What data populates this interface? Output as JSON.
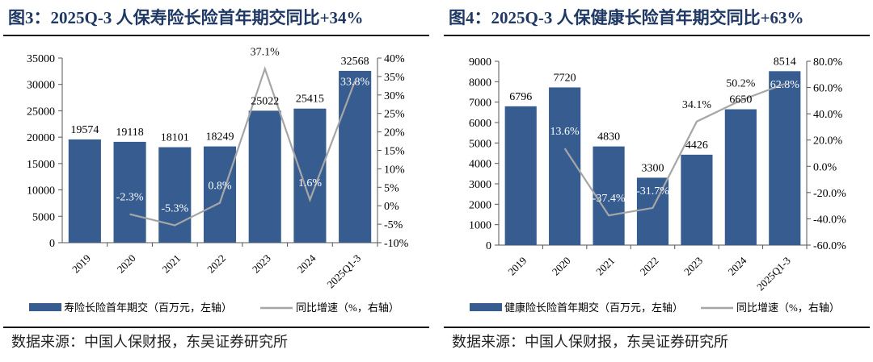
{
  "colors": {
    "bar": "#375d90",
    "line": "#a6a6a6",
    "title": "#1f3864"
  },
  "chart_data": [
    {
      "type": "bar+line",
      "title": "图3：2025Q-3 人保寿险长险首年期交同比+34%",
      "categories": [
        "2019",
        "2020",
        "2021",
        "2022",
        "2023",
        "2024",
        "2025Q1-3"
      ],
      "series": [
        {
          "name": "寿险长险首年期交（百万元，左轴）",
          "type": "bar",
          "axis": "left",
          "values": [
            19574,
            19118,
            18101,
            18249,
            25022,
            25415,
            32568
          ],
          "labels": [
            "19574",
            "19118",
            "18101",
            "18249",
            "25022",
            "25415",
            "32568"
          ]
        },
        {
          "name": "同比增速（%，右轴）",
          "type": "line",
          "axis": "right",
          "values": [
            null,
            -2.3,
            -5.3,
            0.8,
            37.1,
            1.6,
            33.8
          ],
          "labels": [
            "",
            "-2.3%",
            "-5.3%",
            "0.8%",
            "37.1%",
            "1.6%",
            "33.8%"
          ]
        }
      ],
      "ylim_left": [
        0,
        35000
      ],
      "yticks_left": [
        "0",
        "5000",
        "10000",
        "15000",
        "20000",
        "25000",
        "30000",
        "35000"
      ],
      "ylim_right": [
        -10,
        40
      ],
      "yticks_right": [
        "-10%",
        "-5%",
        "0%",
        "5%",
        "10%",
        "15%",
        "20%",
        "25%",
        "30%",
        "35%",
        "40%"
      ],
      "legend": "bottom",
      "source": "数据来源：中国人保财报，东吴证券研究所"
    },
    {
      "type": "bar+line",
      "title": "图4：2025Q-3 人保健康长险首年期交同比+63%",
      "categories": [
        "2019",
        "2020",
        "2021",
        "2022",
        "2023",
        "2024",
        "2025Q1-3"
      ],
      "series": [
        {
          "name": "健康险长险首年期交（百万元，左轴）",
          "type": "bar",
          "axis": "left",
          "values": [
            6796,
            7720,
            4830,
            3300,
            4426,
            6650,
            8514
          ],
          "labels": [
            "6796",
            "7720",
            "4830",
            "3300",
            "4426",
            "6650",
            "8514"
          ]
        },
        {
          "name": "同比增速（%，右轴）",
          "type": "line",
          "axis": "right",
          "values": [
            null,
            13.6,
            -37.4,
            -31.7,
            34.1,
            50.2,
            62.8
          ],
          "labels": [
            "",
            "13.6%",
            "-37.4%",
            "-31.7%",
            "34.1%",
            "50.2%",
            "62.8%"
          ]
        }
      ],
      "ylim_left": [
        0,
        9000
      ],
      "yticks_left": [
        "0",
        "1000",
        "2000",
        "3000",
        "4000",
        "5000",
        "6000",
        "7000",
        "8000",
        "9000"
      ],
      "ylim_right": [
        -60,
        80
      ],
      "yticks_right": [
        "-60.0%",
        "-40.0%",
        "-20.0%",
        "0.0%",
        "20.0%",
        "40.0%",
        "60.0%",
        "80.0%"
      ],
      "legend": "bottom",
      "source": "数据来源：中国人保财报，东吴证券研究所"
    }
  ]
}
